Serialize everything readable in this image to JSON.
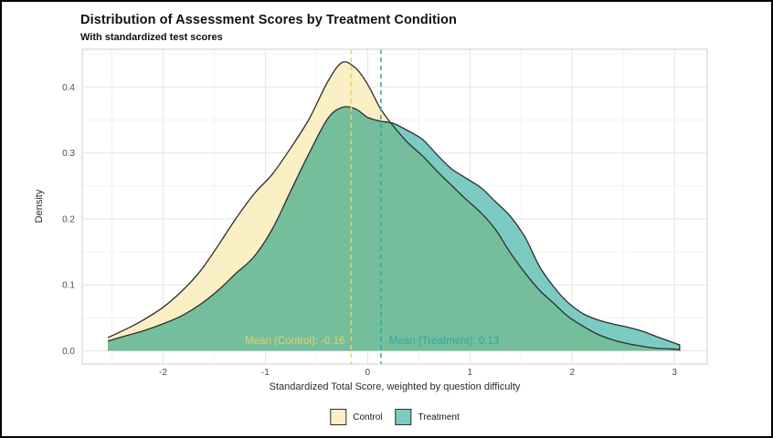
{
  "chart_data": {
    "type": "area",
    "subtype": "density-overlay",
    "title": "Distribution of Assessment Scores by Treatment Condition",
    "subtitle": "With standardized test scores",
    "xlabel": "Standardized Total Score, weighted by question difficulty",
    "ylabel": "Density",
    "xlim": [
      -2.79,
      3.32
    ],
    "ylim": [
      0,
      0.457
    ],
    "x_ticks": [
      -2,
      -1,
      0,
      1,
      2,
      3
    ],
    "y_ticks": [
      "0.0",
      "0.1",
      "0.2",
      "0.3",
      "0.4"
    ],
    "x_minor_gridlines": [
      -2.5,
      -1.5,
      -0.5,
      0.5,
      1.5,
      2.5
    ],
    "y_minor_gridlines": [
      0.05,
      0.15,
      0.25,
      0.35,
      0.45
    ],
    "grid": "major+minor",
    "legend_position": "bottom",
    "x": [
      -2.54,
      -2.36,
      -2.18,
      -2.0,
      -1.82,
      -1.64,
      -1.46,
      -1.29,
      -1.11,
      -0.93,
      -0.75,
      -0.57,
      -0.39,
      -0.25,
      -0.12,
      0.0,
      0.13,
      0.25,
      0.39,
      0.54,
      0.68,
      0.82,
      0.96,
      1.11,
      1.25,
      1.39,
      1.54,
      1.68,
      1.82,
      1.96,
      2.11,
      2.25,
      2.39,
      2.54,
      2.68,
      2.82,
      2.96,
      3.05
    ],
    "series": [
      {
        "name": "Control",
        "fill": "#FAEFC5",
        "stroke": "#2e2e2e",
        "values": [
          0.02,
          0.033,
          0.048,
          0.066,
          0.09,
          0.12,
          0.16,
          0.2,
          0.238,
          0.268,
          0.308,
          0.352,
          0.408,
          0.437,
          0.429,
          0.404,
          0.366,
          0.341,
          0.316,
          0.295,
          0.272,
          0.251,
          0.23,
          0.209,
          0.184,
          0.15,
          0.118,
          0.092,
          0.072,
          0.052,
          0.037,
          0.025,
          0.017,
          0.011,
          0.007,
          0.004,
          0.003,
          0.002
        ]
      },
      {
        "name": "Treatment",
        "fill_alone": "#7CCBC2",
        "fill_overlap": "#74BE9C",
        "stroke": "#2e2e2e",
        "values": [
          0.015,
          0.023,
          0.031,
          0.041,
          0.053,
          0.07,
          0.092,
          0.117,
          0.143,
          0.185,
          0.243,
          0.3,
          0.352,
          0.369,
          0.367,
          0.354,
          0.348,
          0.345,
          0.334,
          0.32,
          0.297,
          0.276,
          0.262,
          0.247,
          0.226,
          0.205,
          0.172,
          0.128,
          0.097,
          0.073,
          0.056,
          0.047,
          0.041,
          0.036,
          0.03,
          0.022,
          0.014,
          0.009
        ]
      }
    ],
    "vlines": [
      {
        "x": -0.16,
        "color": "#E8D45E",
        "style": "dashed",
        "label_for": "Control"
      },
      {
        "x": 0.13,
        "color": "#2AA9A1",
        "style": "dashed",
        "label_for": "Treatment"
      }
    ],
    "annotations": [
      {
        "text": "Mean (Control): -0.16",
        "x": -0.16,
        "y": 0.016,
        "color": "#E2CF6E",
        "align": "right"
      },
      {
        "text": "Mean (Treatment): 0.13",
        "x": 0.13,
        "y": 0.016,
        "color": "#2FA9A1",
        "align": "left"
      }
    ]
  },
  "legend": {
    "items": [
      {
        "label": "Control",
        "color": "#FAEFC5",
        "border": "#2f2f2f"
      },
      {
        "label": "Treatment",
        "color": "#7CCBC2",
        "border": "#2f2f2f"
      }
    ]
  },
  "theme": {
    "panel_border": "#d6d6d6",
    "grid_major": "#e4e4e4",
    "grid_minor": "#f1f1f1",
    "tick_label_color": "#4d4d4d",
    "background": "#ffffff"
  }
}
